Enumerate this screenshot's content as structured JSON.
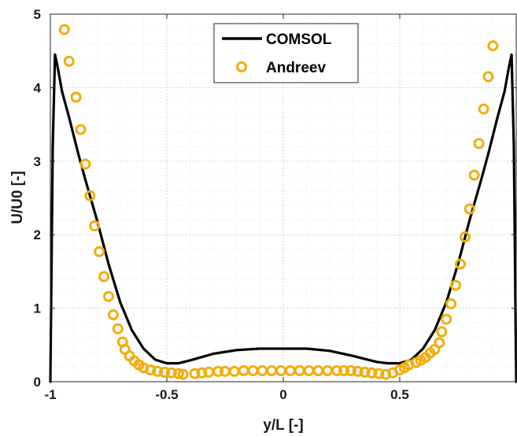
{
  "chart_data": {
    "type": "line",
    "xlabel": "y/L [-]",
    "ylabel": "U/U0 [-]",
    "xlim": [
      -1,
      1
    ],
    "ylim": [
      0,
      5
    ],
    "xticks": [
      -1,
      -0.5,
      0,
      0.5,
      1
    ],
    "xtick_labels": [
      "-1",
      "-0.5",
      "0",
      "0.5",
      ""
    ],
    "yticks": [
      0,
      1,
      2,
      3,
      4,
      5
    ],
    "ytick_labels": [
      "0",
      "1",
      "2",
      "3",
      "4",
      "5"
    ],
    "grid": true,
    "minor_grid": true,
    "legend_position": "top-center",
    "series": [
      {
        "name": "COMSOL",
        "style": "line",
        "color": "#000000",
        "x": [
          -1.0,
          -0.99,
          -0.98,
          -0.97,
          -0.95,
          -0.92,
          -0.88,
          -0.85,
          -0.8,
          -0.75,
          -0.7,
          -0.65,
          -0.6,
          -0.55,
          -0.5,
          -0.45,
          -0.4,
          -0.3,
          -0.2,
          -0.1,
          0.0,
          0.1,
          0.2,
          0.3,
          0.4,
          0.45,
          0.5,
          0.55,
          0.6,
          0.65,
          0.7,
          0.75,
          0.8,
          0.85,
          0.88,
          0.92,
          0.95,
          0.97,
          0.98,
          0.99,
          1.0
        ],
        "y": [
          0.0,
          3.2,
          4.45,
          4.3,
          3.95,
          3.6,
          3.1,
          2.75,
          2.2,
          1.6,
          1.08,
          0.7,
          0.45,
          0.3,
          0.25,
          0.25,
          0.29,
          0.38,
          0.43,
          0.45,
          0.45,
          0.45,
          0.42,
          0.35,
          0.27,
          0.25,
          0.25,
          0.3,
          0.45,
          0.7,
          1.08,
          1.6,
          2.2,
          2.75,
          3.1,
          3.6,
          3.95,
          4.3,
          4.45,
          3.2,
          0.0
        ]
      },
      {
        "name": "Andreev",
        "style": "markers",
        "color": "#f2ac0b",
        "x": [
          -0.94,
          -0.92,
          -0.89,
          -0.87,
          -0.85,
          -0.83,
          -0.81,
          -0.79,
          -0.77,
          -0.75,
          -0.73,
          -0.71,
          -0.69,
          -0.68,
          -0.66,
          -0.64,
          -0.62,
          -0.6,
          -0.57,
          -0.54,
          -0.51,
          -0.48,
          -0.45,
          -0.43,
          -0.38,
          -0.35,
          -0.32,
          -0.28,
          -0.25,
          -0.21,
          -0.17,
          -0.13,
          -0.09,
          -0.05,
          -0.01,
          0.03,
          0.07,
          0.11,
          0.15,
          0.19,
          0.23,
          0.26,
          0.29,
          0.32,
          0.35,
          0.38,
          0.41,
          0.44,
          0.47,
          0.5,
          0.52,
          0.54,
          0.57,
          0.59,
          0.61,
          0.63,
          0.65,
          0.67,
          0.68,
          0.7,
          0.72,
          0.74,
          0.76,
          0.78,
          0.8,
          0.82,
          0.84,
          0.86,
          0.88,
          0.9
        ],
        "y": [
          4.79,
          4.36,
          3.87,
          3.43,
          2.96,
          2.53,
          2.12,
          1.77,
          1.43,
          1.16,
          0.91,
          0.72,
          0.54,
          0.44,
          0.35,
          0.28,
          0.23,
          0.19,
          0.16,
          0.14,
          0.13,
          0.12,
          0.11,
          0.1,
          0.11,
          0.12,
          0.13,
          0.14,
          0.14,
          0.14,
          0.15,
          0.15,
          0.15,
          0.15,
          0.15,
          0.15,
          0.15,
          0.15,
          0.15,
          0.15,
          0.15,
          0.15,
          0.15,
          0.14,
          0.13,
          0.12,
          0.11,
          0.1,
          0.12,
          0.16,
          0.19,
          0.23,
          0.26,
          0.29,
          0.33,
          0.39,
          0.44,
          0.53,
          0.68,
          0.85,
          1.06,
          1.31,
          1.6,
          1.97,
          2.35,
          2.81,
          3.24,
          3.71,
          4.15,
          4.57
        ]
      }
    ]
  }
}
